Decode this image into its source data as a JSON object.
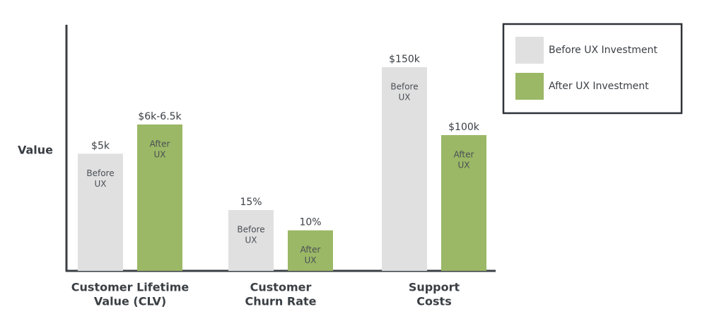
{
  "chart_data": {
    "type": "bar",
    "y_label": "Value",
    "categories": [
      [
        "Customer Lifetime",
        "Value (CLV)"
      ],
      [
        "Customer",
        "Churn Rate"
      ],
      [
        "Support",
        "Costs"
      ]
    ],
    "series": [
      {
        "name": "Before UX Investment",
        "color": "#e0e0e0",
        "inner_label": [
          "Before",
          "UX"
        ],
        "values": [
          5000,
          15,
          150000
        ],
        "value_labels": [
          "$5k",
          "15%",
          "$150k"
        ]
      },
      {
        "name": "After UX Investment",
        "color": "#9bb866",
        "inner_label": [
          "After",
          "UX"
        ],
        "values": [
          6250,
          10,
          100000
        ],
        "value_labels": [
          "$6k-6.5k",
          "10%",
          "$100k"
        ]
      }
    ]
  }
}
